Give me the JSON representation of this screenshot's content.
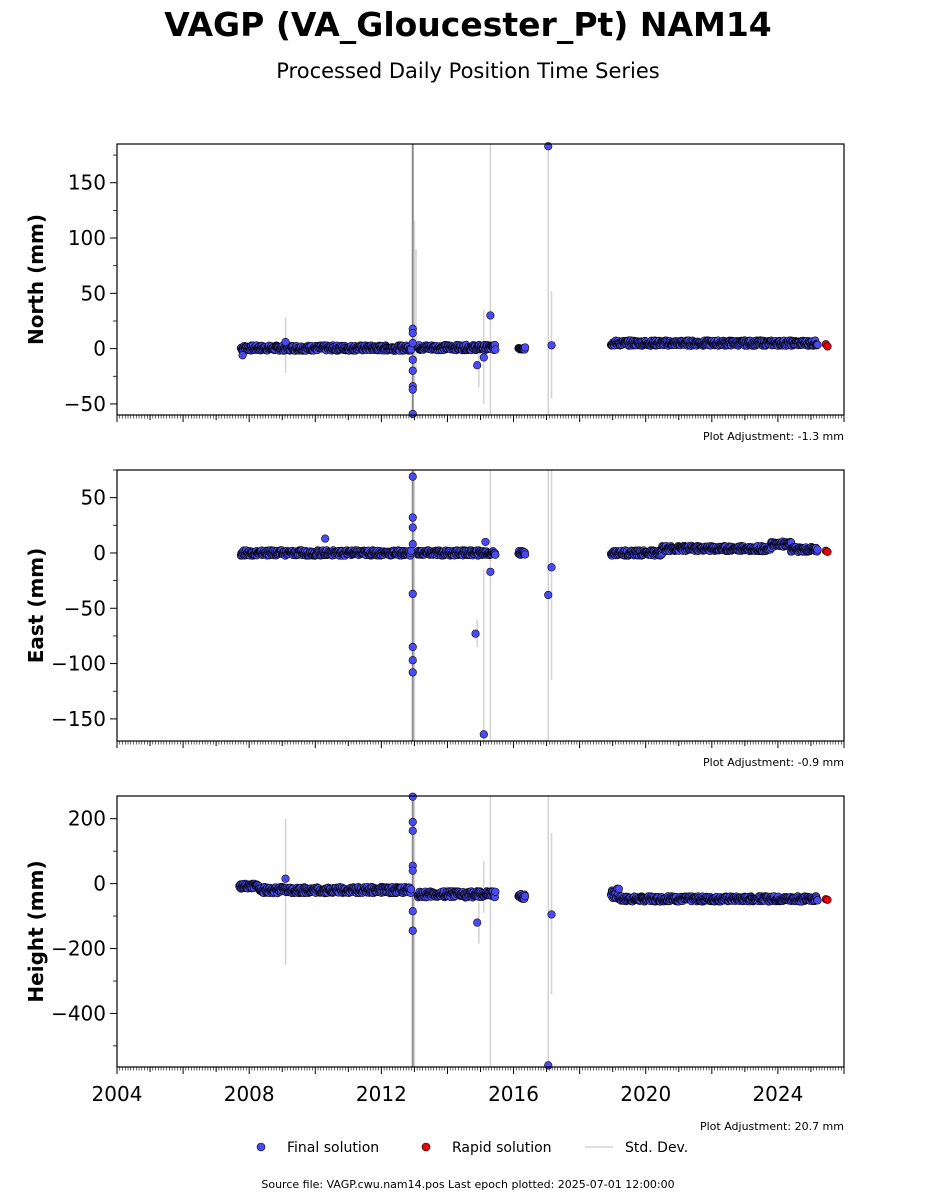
{
  "title": "VAGP (VA_Gloucester_Pt) NAM14",
  "subtitle": "Processed Daily Position Time Series",
  "footer": "Source file: VAGP.cwu.nam14.pos  Last epoch plotted: 2025-07-01 12:00:00",
  "legend": {
    "final": "Final solution",
    "rapid": "Rapid solution",
    "stddev": "Std. Dev."
  },
  "colors": {
    "final": "#4a4af0",
    "rapid": "#e8000b",
    "stddev": "#d3d3d3",
    "outline": "#000000"
  },
  "chart_data": [
    {
      "type": "scatter",
      "ylabel": "North (mm)",
      "xlim": [
        2004,
        2026
      ],
      "ylim": [
        -60,
        185
      ],
      "yticks": [
        -50,
        0,
        50,
        100,
        150
      ],
      "adjustment": "Plot Adjustment: -1.3 mm",
      "series": [
        {
          "name": "Final solution",
          "segments": [
            {
              "x0": 2007.75,
              "x1": 2012.9,
              "base": 0.5,
              "amp": 1.5
            },
            {
              "x0": 2013.1,
              "x1": 2015.45,
              "base": 1,
              "amp": 1.5
            },
            {
              "x0": 2016.15,
              "x1": 2016.35,
              "base": 0.5,
              "amp": 1
            },
            {
              "x0": 2018.95,
              "x1": 2025.2,
              "base": 5,
              "amp": 1.5
            }
          ],
          "points": [
            [
              2007.8,
              -6
            ],
            [
              2009.1,
              6
            ],
            [
              2012.95,
              18
            ],
            [
              2012.95,
              14
            ],
            [
              2012.95,
              5
            ],
            [
              2012.95,
              -10
            ],
            [
              2012.95,
              -20
            ],
            [
              2012.95,
              -34
            ],
            [
              2012.95,
              -37
            ],
            [
              2012.95,
              -59
            ],
            [
              2014.9,
              -15
            ],
            [
              2015.1,
              -8
            ],
            [
              2015.3,
              30
            ],
            [
              2017.05,
              183
            ],
            [
              2017.15,
              3
            ]
          ]
        },
        {
          "name": "Rapid solution",
          "points": [
            [
              2025.45,
              4
            ],
            [
              2025.5,
              2
            ]
          ]
        }
      ],
      "stddev": [
        [
          2009.1,
          -22,
          28
        ],
        [
          2012.95,
          -60,
          185
        ],
        [
          2013.0,
          -40,
          116
        ],
        [
          2013.05,
          -20,
          90
        ],
        [
          2014.95,
          -35,
          5
        ],
        [
          2015.1,
          -50,
          35
        ],
        [
          2015.3,
          -60,
          185
        ],
        [
          2017.05,
          -60,
          185
        ],
        [
          2017.15,
          -45,
          52
        ]
      ]
    },
    {
      "type": "scatter",
      "ylabel": "East (mm)",
      "xlim": [
        2004,
        2026
      ],
      "ylim": [
        -170,
        75
      ],
      "yticks": [
        -150,
        -100,
        -50,
        0,
        50
      ],
      "adjustment": "Plot Adjustment: -0.9 mm",
      "series": [
        {
          "name": "Final solution",
          "segments": [
            {
              "x0": 2007.75,
              "x1": 2012.9,
              "base": 0,
              "amp": 1.5
            },
            {
              "x0": 2013.1,
              "x1": 2015.45,
              "base": 0,
              "amp": 1.5
            },
            {
              "x0": 2016.15,
              "x1": 2016.35,
              "base": 0,
              "amp": 1
            },
            {
              "x0": 2018.95,
              "x1": 2020.5,
              "base": 0,
              "amp": 1.5
            },
            {
              "x0": 2020.5,
              "x1": 2023.8,
              "base": 4,
              "amp": 1.5
            },
            {
              "x0": 2023.8,
              "x1": 2024.4,
              "base": 8,
              "amp": 1.5
            },
            {
              "x0": 2024.4,
              "x1": 2025.2,
              "base": 3,
              "amp": 1.5
            }
          ],
          "points": [
            [
              2010.3,
              13
            ],
            [
              2012.95,
              69
            ],
            [
              2012.95,
              32
            ],
            [
              2012.95,
              23
            ],
            [
              2012.95,
              8
            ],
            [
              2012.95,
              -37
            ],
            [
              2012.95,
              -85
            ],
            [
              2012.95,
              -97
            ],
            [
              2012.95,
              -108
            ],
            [
              2014.85,
              -73
            ],
            [
              2015.1,
              -164
            ],
            [
              2015.15,
              10
            ],
            [
              2015.3,
              -17
            ],
            [
              2017.05,
              -38
            ],
            [
              2017.15,
              -13
            ]
          ]
        },
        {
          "name": "Rapid solution",
          "points": [
            [
              2025.45,
              2
            ],
            [
              2025.5,
              1
            ]
          ]
        }
      ],
      "stddev": [
        [
          2012.95,
          -170,
          75
        ],
        [
          2013.0,
          -170,
          75
        ],
        [
          2014.9,
          -85,
          -60
        ],
        [
          2015.1,
          -170,
          -15
        ],
        [
          2015.3,
          -170,
          75
        ],
        [
          2017.05,
          -170,
          75
        ],
        [
          2017.15,
          -115,
          75
        ]
      ]
    },
    {
      "type": "scatter",
      "ylabel": "Height (mm)",
      "xlabel": "",
      "xlim": [
        2004,
        2026
      ],
      "ylim": [
        -565,
        270
      ],
      "yticks": [
        -400,
        -200,
        0,
        200
      ],
      "xticks": [
        2004,
        2008,
        2012,
        2016,
        2020,
        2024
      ],
      "adjustment": "Plot Adjustment: 20.7 mm",
      "series": [
        {
          "name": "Final solution",
          "segments": [
            {
              "x0": 2007.7,
              "x1": 2008.3,
              "base": -8,
              "amp": 5
            },
            {
              "x0": 2008.3,
              "x1": 2012.9,
              "base": -20,
              "amp": 6
            },
            {
              "x0": 2013.1,
              "x1": 2015.45,
              "base": -33,
              "amp": 6
            },
            {
              "x0": 2016.15,
              "x1": 2016.35,
              "base": -40,
              "amp": 5
            },
            {
              "x0": 2018.95,
              "x1": 2019.2,
              "base": -30,
              "amp": 10
            },
            {
              "x0": 2019.2,
              "x1": 2025.2,
              "base": -47,
              "amp": 5
            }
          ],
          "points": [
            [
              2009.1,
              15
            ],
            [
              2012.95,
              268
            ],
            [
              2012.95,
              190
            ],
            [
              2012.95,
              163
            ],
            [
              2012.95,
              55
            ],
            [
              2012.95,
              40
            ],
            [
              2012.95,
              -85
            ],
            [
              2012.95,
              -145
            ],
            [
              2014.9,
              -120
            ],
            [
              2017.05,
              -560
            ],
            [
              2017.15,
              -95
            ]
          ]
        },
        {
          "name": "Rapid solution",
          "points": [
            [
              2025.45,
              -48
            ],
            [
              2025.5,
              -50
            ]
          ]
        }
      ],
      "stddev": [
        [
          2009.1,
          -250,
          200
        ],
        [
          2012.95,
          -565,
          270
        ],
        [
          2013.0,
          -565,
          270
        ],
        [
          2014.95,
          -185,
          -60
        ],
        [
          2015.1,
          -90,
          70
        ],
        [
          2015.3,
          -565,
          270
        ],
        [
          2017.05,
          -565,
          270
        ],
        [
          2017.15,
          -340,
          155
        ]
      ]
    }
  ]
}
